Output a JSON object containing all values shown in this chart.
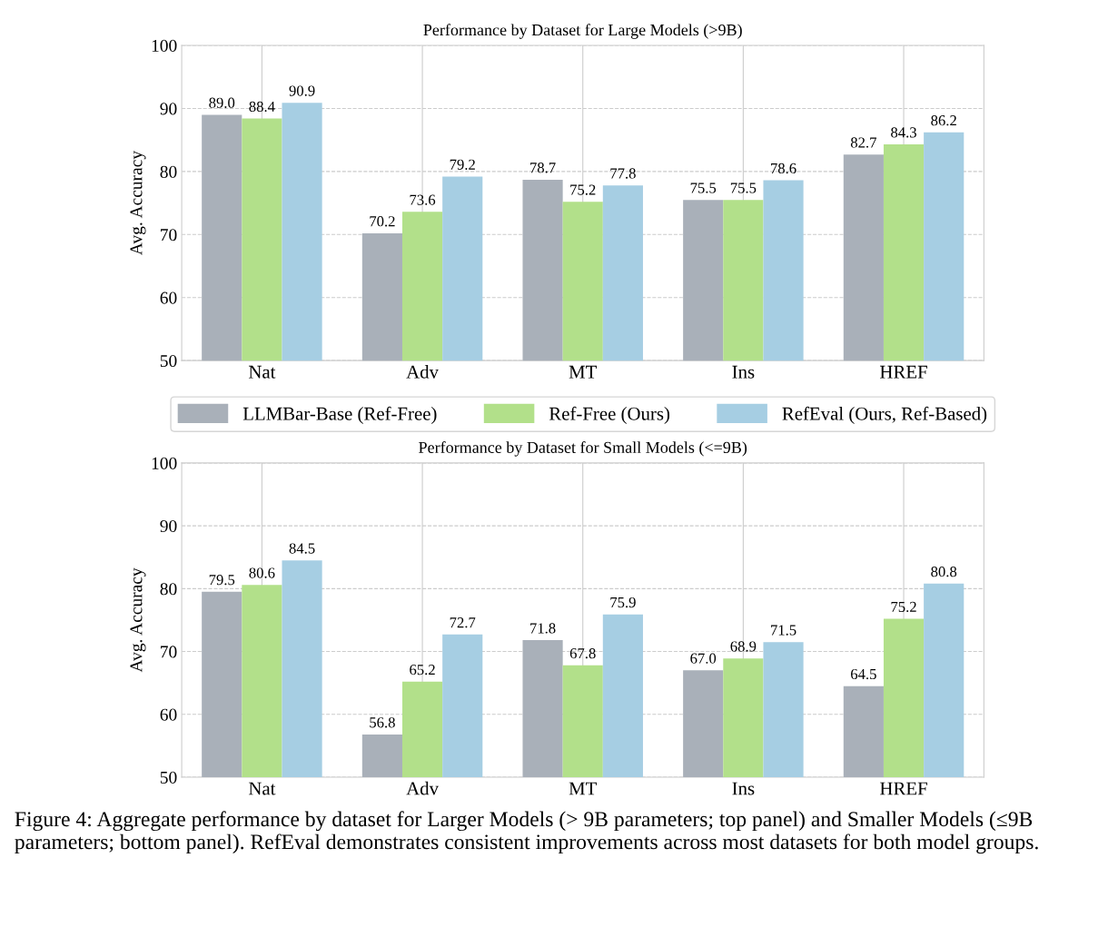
{
  "chart_data": [
    {
      "type": "bar",
      "title": "Performance by Dataset for Large Models (>9B)",
      "ylabel": "Avg. Accuracy",
      "categories": [
        "Nat",
        "Adv",
        "MT",
        "Ins",
        "HREF"
      ],
      "series": [
        {
          "name": "LLMBar-Base (Ref-Free)",
          "color": "#a9b0b9",
          "values": [
            89.0,
            70.2,
            78.7,
            75.5,
            82.7
          ],
          "value_labels": [
            "89.0",
            "70.2",
            "78.7",
            "75.5",
            "82.7"
          ]
        },
        {
          "name": "Ref-Free (Ours)",
          "color": "#b2e08a",
          "values": [
            88.4,
            73.6,
            75.2,
            75.5,
            84.3
          ],
          "value_labels": [
            "88.4",
            "73.6",
            "75.2",
            "75.5",
            "84.3"
          ]
        },
        {
          "name": "RefEval (Ours, Ref-Based)",
          "color": "#a6cee3",
          "values": [
            90.9,
            79.2,
            77.8,
            78.6,
            86.2
          ],
          "value_labels": [
            "90.9",
            "79.2",
            "77.8",
            "78.6",
            "86.2"
          ]
        }
      ],
      "ylim": [
        50,
        100
      ],
      "yticks": [
        50,
        60,
        70,
        80,
        90,
        100
      ],
      "grid": true,
      "legend": "bottom"
    },
    {
      "type": "bar",
      "title": "Performance by Dataset for Small Models (<=9B)",
      "ylabel": "Avg. Accuracy",
      "categories": [
        "Nat",
        "Adv",
        "MT",
        "Ins",
        "HREF"
      ],
      "series": [
        {
          "color": "#a9b0b9",
          "values": [
            79.5,
            56.8,
            71.8,
            67.0,
            64.5
          ],
          "value_labels": [
            "79.5",
            "56.8",
            "71.8",
            "67.0",
            "64.5"
          ]
        },
        {
          "color": "#b2e08a",
          "values": [
            80.6,
            65.2,
            67.8,
            68.9,
            75.2
          ],
          "value_labels": [
            "80.6",
            "65.2",
            "67.8",
            "68.9",
            "75.2"
          ]
        },
        {
          "color": "#a6cee3",
          "values": [
            84.5,
            72.7,
            75.9,
            71.5,
            80.8
          ],
          "value_labels": [
            "84.5",
            "72.7",
            "75.9",
            "71.5",
            "80.8"
          ]
        }
      ],
      "ylim": [
        50,
        100
      ],
      "yticks": [
        50,
        60,
        70,
        80,
        90,
        100
      ],
      "grid": true,
      "annotations": [
        "Figure 4: Aggregate performance by dataset for Larger Models (> 9B parameters; top panel) and Smaller Models (≤9B parameters; bottom panel). RefEval demonstrates consistent improvements across most datasets for both model groups."
      ]
    }
  ]
}
